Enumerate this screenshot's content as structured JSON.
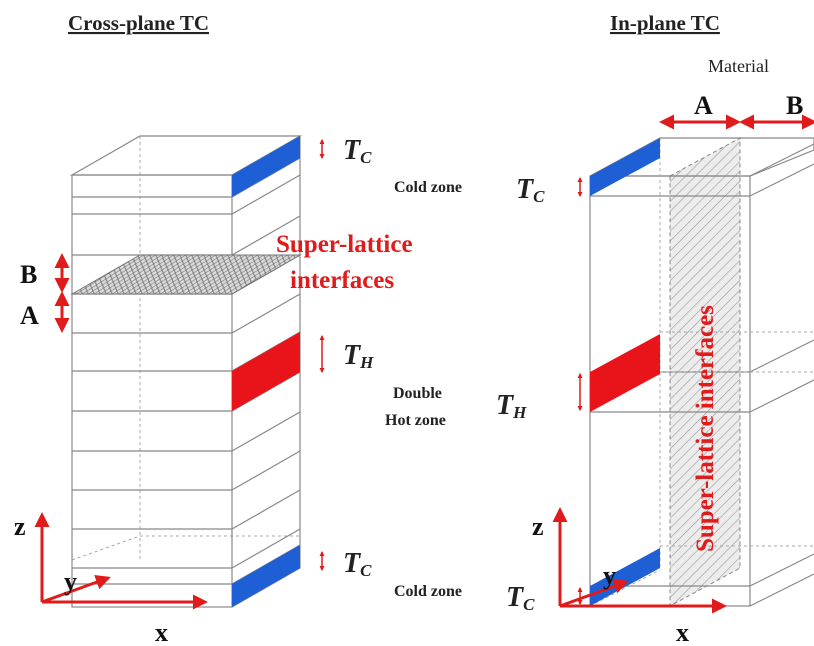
{
  "left_panel": {
    "title": "Cross-plane TC",
    "tc_label": "T",
    "tc_sub": "C",
    "th_label": "T",
    "th_sub": "H",
    "tc_bottom_label": "T",
    "tc_bottom_sub": "C",
    "layer_b": "B",
    "layer_a": "A",
    "interfaces_line1": "Super-lattice",
    "interfaces_line2": "interfaces",
    "axis_z": "z",
    "axis_y": "y",
    "axis_x": "x"
  },
  "right_panel": {
    "title": "In-plane TC",
    "material_label": "Material",
    "material_a": "A",
    "material_b": "B",
    "cold_zone_top": "Cold zone",
    "tc_top_label": "T",
    "tc_top_sub": "C",
    "hot_zone_line1": "Double",
    "hot_zone_line2": "Hot zone",
    "th_label": "T",
    "th_sub": "H",
    "cold_zone_bottom": "Cold zone",
    "tc_bottom_label": "T",
    "tc_bottom_sub": "C",
    "interfaces_vertical": "Super-lattice interfaces",
    "axis_z": "z",
    "axis_y": "y",
    "axis_x": "x"
  },
  "colors": {
    "cold": "#1f5fd6",
    "hot": "#e8141a",
    "arrow": "#e01b1b",
    "edge": "#888888"
  }
}
